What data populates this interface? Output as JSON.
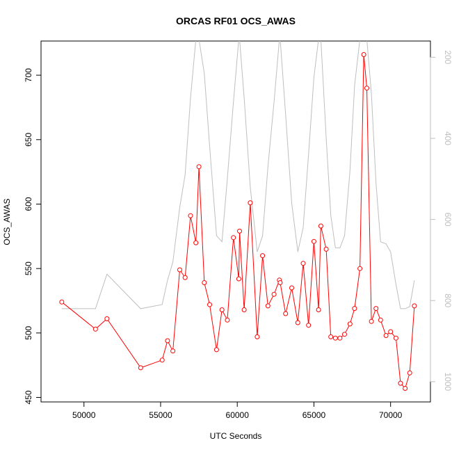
{
  "chart_data": {
    "type": "line",
    "title": "ORCAS RF01 OCS_AWAS",
    "xlabel": "UTC Seconds",
    "ylabel": "OCS_AWAS",
    "xlim": [
      47200,
      72600
    ],
    "ylim": [
      446.5,
      726.5
    ],
    "y2lim": [
      1050,
      160
    ],
    "y2_reversed": true,
    "x_ticks": [
      50000,
      55000,
      60000,
      65000,
      70000
    ],
    "y_ticks": [
      450,
      500,
      550,
      600,
      650,
      700
    ],
    "y2_ticks": [
      200,
      400,
      600,
      800,
      1000
    ],
    "grid": false,
    "legend": "none",
    "series": [
      {
        "axis": "left",
        "color": "#ff0000",
        "marker": "open-circle",
        "x": [
          48550,
          50750,
          51500,
          53700,
          55100,
          55450,
          55800,
          56250,
          56600,
          56950,
          57300,
          57500,
          57850,
          58200,
          58650,
          59000,
          59350,
          59750,
          60100,
          60150,
          60450,
          60850,
          61300,
          61650,
          62000,
          62400,
          62750,
          62800,
          63150,
          63550,
          63950,
          64300,
          64650,
          65000,
          65300,
          65450,
          65800,
          66100,
          66400,
          66700,
          67000,
          67350,
          67650,
          68000,
          68250,
          68450,
          68750,
          69050,
          69350,
          69700,
          70000,
          70350,
          70650,
          70950,
          71250,
          71550
        ],
        "y": [
          524,
          503,
          511,
          473,
          479,
          494,
          486,
          549,
          543,
          591,
          570,
          629,
          539,
          522,
          487,
          518,
          510,
          574,
          542,
          579,
          518,
          601,
          497,
          560,
          521,
          530,
          541,
          539,
          515,
          535,
          508,
          554,
          506,
          571,
          518,
          583,
          565,
          497,
          496,
          496,
          499,
          507,
          519,
          550,
          716,
          690,
          509,
          519,
          510,
          498,
          501,
          496,
          461,
          457,
          469,
          521
        ]
      },
      {
        "axis": "right",
        "color": "#bebebe",
        "marker": "none",
        "x": [
          48550,
          50750,
          51500,
          53700,
          55100,
          55450,
          55800,
          56250,
          56600,
          56950,
          57300,
          57500,
          57850,
          58200,
          58650,
          59000,
          59350,
          59750,
          60100,
          60150,
          60450,
          60850,
          61300,
          61650,
          62000,
          62400,
          62750,
          62800,
          63150,
          63550,
          63950,
          64300,
          64650,
          65000,
          65300,
          65450,
          65800,
          66100,
          66400,
          66700,
          67000,
          67350,
          67650,
          68000,
          68250,
          68450,
          68750,
          69050,
          69350,
          69700,
          70000,
          70350,
          70650,
          70950,
          71250,
          71550
        ],
        "y": [
          820,
          820,
          735,
          820,
          810,
          750,
          705,
          570,
          490,
          300,
          155,
          155,
          240,
          420,
          640,
          655,
          500,
          310,
          155,
          155,
          300,
          520,
          680,
          640,
          470,
          310,
          155,
          155,
          340,
          560,
          680,
          620,
          440,
          250,
          155,
          155,
          400,
          590,
          670,
          670,
          640,
          480,
          270,
          155,
          155,
          155,
          290,
          510,
          655,
          660,
          680,
          760,
          820,
          820,
          815,
          750
        ]
      }
    ]
  }
}
